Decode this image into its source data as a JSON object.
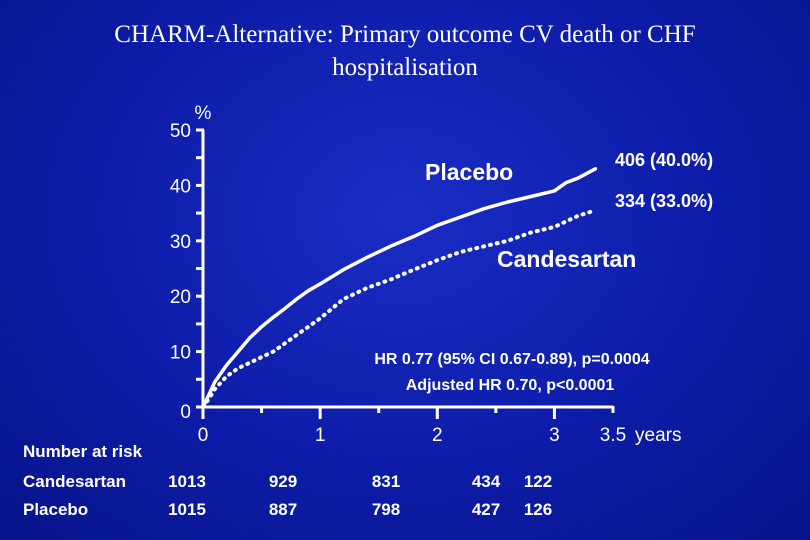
{
  "title": {
    "line1": "CHARM-Alternative: Primary outcome CV death or CHF",
    "line2": "hospitalisation"
  },
  "colors": {
    "background": "#0d1ca8",
    "foreground": "#ffffff"
  },
  "chart_data": {
    "type": "line",
    "ylabel": "%",
    "xlabel": "years",
    "xlim": [
      0,
      3.5
    ],
    "ylim": [
      0,
      50
    ],
    "x_ticks": [
      "0",
      "1",
      "2",
      "3",
      "3.5"
    ],
    "y_ticks": [
      "0",
      "10",
      "20",
      "30",
      "40",
      "50"
    ],
    "grid": false,
    "series": [
      {
        "name": "Placebo",
        "style": "solid",
        "end_label": "406 (40.0%)",
        "x": [
          0,
          0.05,
          0.1,
          0.2,
          0.3,
          0.4,
          0.5,
          0.6,
          0.7,
          0.8,
          0.9,
          1.0,
          1.2,
          1.4,
          1.6,
          1.8,
          2.0,
          2.2,
          2.4,
          2.6,
          2.8,
          3.0,
          3.1,
          3.2,
          3.35
        ],
        "values": [
          0,
          2.2,
          4.5,
          7.5,
          10,
          12.5,
          14.5,
          16.2,
          17.8,
          19.5,
          21.0,
          22.2,
          24.8,
          27.0,
          29.0,
          30.8,
          32.8,
          34.3,
          35.8,
          37.0,
          38.0,
          39.0,
          40.5,
          41.3,
          43.0
        ]
      },
      {
        "name": "Candesartan",
        "style": "dotted",
        "end_label": "334 (33.0%)",
        "x": [
          0,
          0.05,
          0.1,
          0.2,
          0.3,
          0.4,
          0.5,
          0.6,
          0.7,
          0.8,
          0.9,
          1.0,
          1.2,
          1.4,
          1.6,
          1.8,
          2.0,
          2.2,
          2.4,
          2.6,
          2.8,
          3.0,
          3.1,
          3.2,
          3.35
        ],
        "values": [
          0,
          1.5,
          3.2,
          5.5,
          7.0,
          8.0,
          9.0,
          10.0,
          11.5,
          13.0,
          14.5,
          16.0,
          19.5,
          21.5,
          23.0,
          24.8,
          26.5,
          28.0,
          29.0,
          30.0,
          31.5,
          32.5,
          33.5,
          34.5,
          35.5
        ]
      }
    ],
    "annotation": {
      "line1": "HR 0.77 (95% CI 0.67-0.89), p=0.0004",
      "line2": "Adjusted HR 0.70, p<0.0001"
    }
  },
  "risk_table": {
    "header": "Number at risk",
    "rows": [
      {
        "label": "Candesartan",
        "values": [
          "1013",
          "929",
          "831",
          "434",
          "122"
        ]
      },
      {
        "label": "Placebo",
        "values": [
          "1015",
          "887",
          "798",
          "427",
          "126"
        ]
      }
    ]
  }
}
